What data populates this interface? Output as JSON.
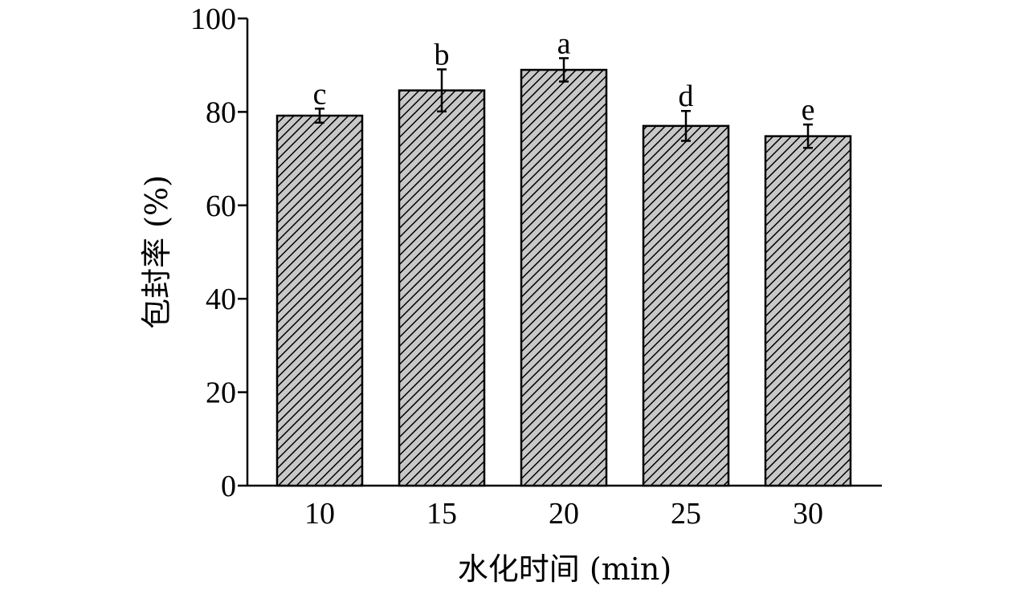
{
  "chart_data": {
    "type": "bar",
    "categories": [
      "10",
      "15",
      "20",
      "25",
      "30"
    ],
    "values": [
      79.2,
      84.6,
      89.0,
      77.0,
      74.8
    ],
    "errors": [
      1.5,
      4.5,
      2.5,
      3.2,
      2.5
    ],
    "significance_labels": [
      "c",
      "b",
      "a",
      "d",
      "e"
    ],
    "xlabel": "水化时间 (min)",
    "ylabel": "包封率 (%)",
    "ylim": [
      0,
      100
    ],
    "yticks": [
      0,
      20,
      40,
      60,
      80,
      100
    ],
    "bar_fill": "#c8c8c8",
    "hatch_color": "#000000",
    "grid": false,
    "legend": "none"
  }
}
